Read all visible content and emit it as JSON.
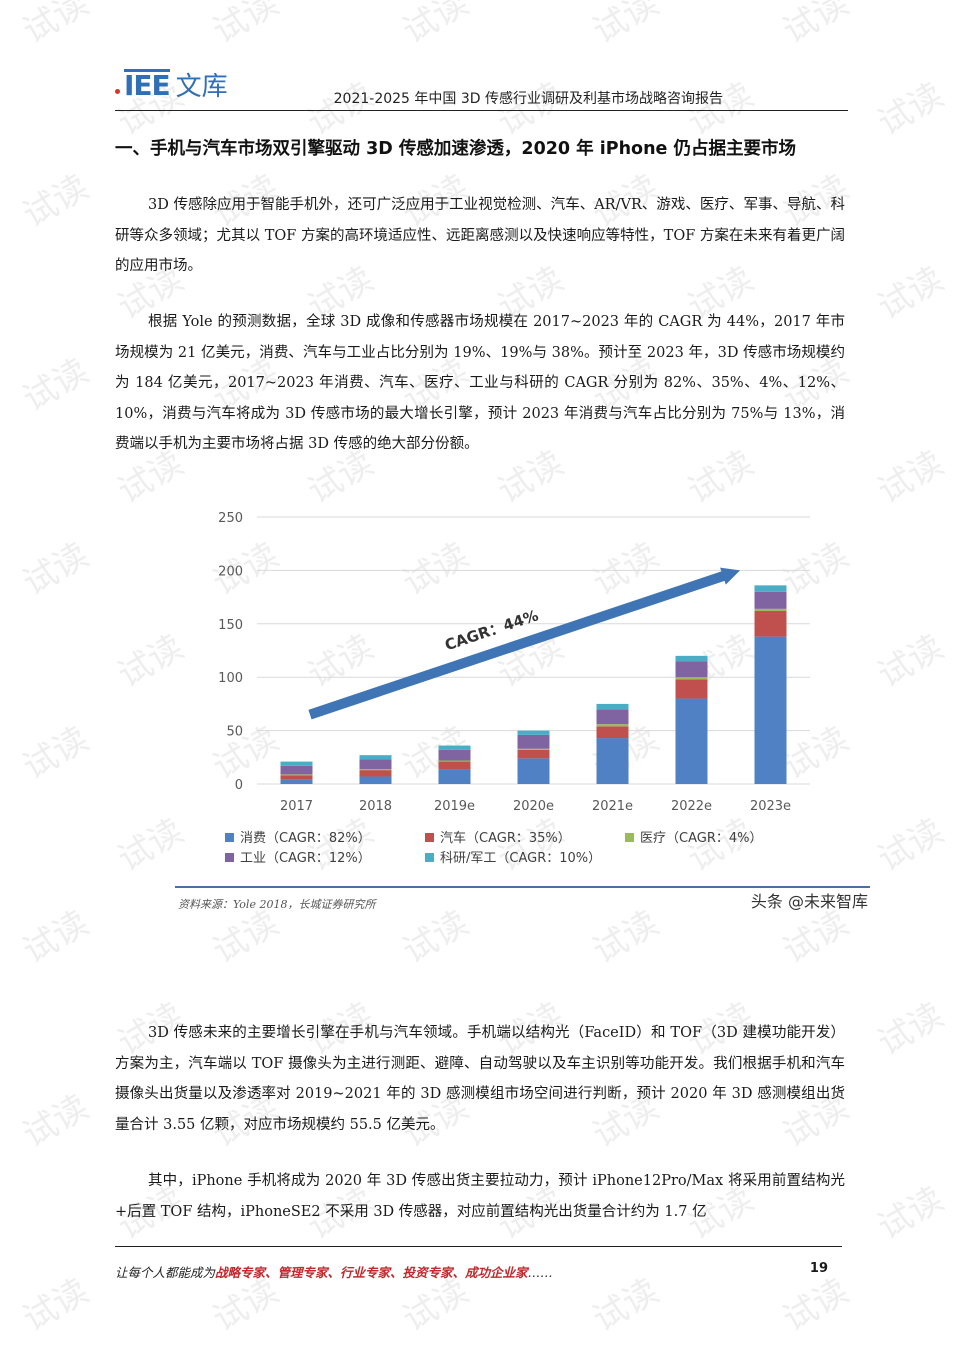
{
  "header": {
    "logo_mark": "IEE",
    "logo_text": "文库",
    "title": "2021-2025 年中国 3D 传感行业调研及利基市场战略咨询报告"
  },
  "watermark": {
    "text": "试读"
  },
  "section_title": "一、手机与汽车市场双引擎驱动 3D 传感加速渗透，2020 年 iPhone 仍占据主要市场",
  "paragraphs": [
    "3D 传感除应用于智能手机外，还可广泛应用于工业视觉检测、汽车、AR/VR、游戏、医疗、军事、导航、科研等众多领域；尤其以 TOF 方案的高环境适应性、远距离感测以及快速响应等特性，TOF 方案在未来有着更广阔的应用市场。",
    "根据 Yole 的预测数据，全球 3D 成像和传感器市场规模在 2017~2023 年的 CAGR 为 44%，2017 年市场规模为 21 亿美元，消费、汽车与工业占比分别为 19%、19%与 38%。预计至 2023 年，3D 传感市场规模约为 184 亿美元，2017~2023 年消费、汽车、医疗、工业与科研的 CAGR 分别为 82%、35%、4%、12%、10%，消费与汽车将成为 3D 传感市场的最大增长引擎，预计 2023 年消费与汽车占比分别为 75%与 13%，消费端以手机为主要市场将占据 3D 传感的绝大部分份额。",
    "3D 传感未来的主要增长引擎在手机与汽车领域。手机端以结构光（FaceID）和 TOF（3D 建模功能开发）方案为主，汽车端以 TOF 摄像头为主进行测距、避障、自动驾驶以及车主识别等功能开发。我们根据手机和汽车摄像头出货量以及渗透率对 2019~2021 年的 3D 感测模组市场空间进行判断，预计 2020 年 3D 感测模组出货量合计 3.55 亿颗，对应市场规模约 55.5 亿美元。",
    "其中，iPhone 手机将成为 2020 年 3D 传感出货主要拉动力，预计 iPhone12Pro/Max 将采用前置结构光+后置 TOF 结构，iPhoneSE2 不采用 3D 传感器，对应前置结构光出货量合计约为 1.7 亿"
  ],
  "chart_data": {
    "type": "bar",
    "stacked": true,
    "categories": [
      "2017",
      "2018",
      "2019e",
      "2020e",
      "2021e",
      "2022e",
      "2023e"
    ],
    "ylim": [
      0,
      250
    ],
    "yticks": [
      0,
      50,
      100,
      150,
      200,
      250
    ],
    "series": [
      {
        "name": "消费（CAGR：82%）",
        "color": "#4f81c4",
        "values": [
          4,
          7,
          14,
          24,
          43,
          80,
          138
        ]
      },
      {
        "name": "汽车（CAGR：35%）",
        "color": "#c0504d",
        "values": [
          4,
          6,
          7,
          8,
          11,
          18,
          24
        ]
      },
      {
        "name": "医疗（CAGR：4%）",
        "color": "#9bbb59",
        "values": [
          1,
          1,
          1,
          1,
          2,
          2,
          2
        ]
      },
      {
        "name": "工业（CAGR：12%）",
        "color": "#8064a2",
        "values": [
          8,
          9,
          10,
          13,
          14,
          15,
          16
        ]
      },
      {
        "name": "科研/军工（CAGR：10%）",
        "color": "#4bacc6",
        "values": [
          4,
          4,
          4,
          4,
          5,
          5,
          6
        ]
      }
    ],
    "annotation": "CAGR：44%",
    "source": "资料来源：Yole 2018，长城证券研究所",
    "credit": "头条 @未来智库"
  },
  "footer": {
    "prefix": "让每个人都能成为",
    "highlight": "战略专家、管理专家、行业专家、投资专家、成功企业家",
    "suffix": "……",
    "page_number": "19"
  }
}
